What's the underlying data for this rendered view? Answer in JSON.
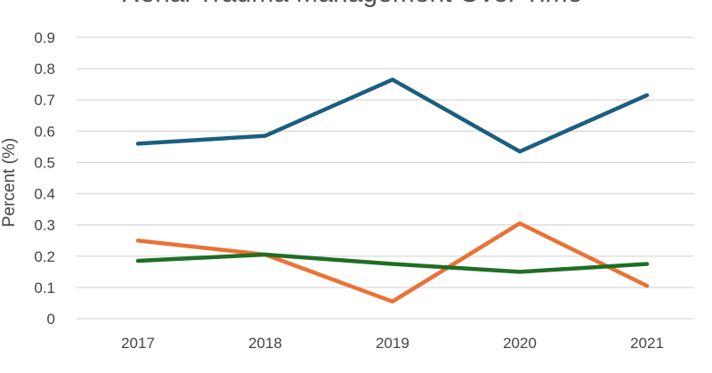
{
  "chart_data": {
    "type": "line",
    "title": "Renal Trauma Management Over Time",
    "xlabel": "",
    "ylabel": "Percent (%)",
    "categories": [
      "2017",
      "2018",
      "2019",
      "2020",
      "2021"
    ],
    "ylim": [
      0,
      0.9
    ],
    "yticks": [
      "0",
      "0.1",
      "0.2",
      "0.3",
      "0.4",
      "0.5",
      "0.6",
      "0.7",
      "0.8",
      "0.9"
    ],
    "grid": true,
    "legend": "none",
    "series": [
      {
        "values": [
          0.56,
          0.585,
          0.765,
          0.535,
          0.715
        ],
        "color": "#1b5e80"
      },
      {
        "values": [
          0.25,
          0.205,
          0.055,
          0.305,
          0.105
        ],
        "color": "#ea7234"
      },
      {
        "values": [
          0.185,
          0.205,
          0.175,
          0.15,
          0.175
        ],
        "color": "#1e6e23"
      }
    ]
  }
}
